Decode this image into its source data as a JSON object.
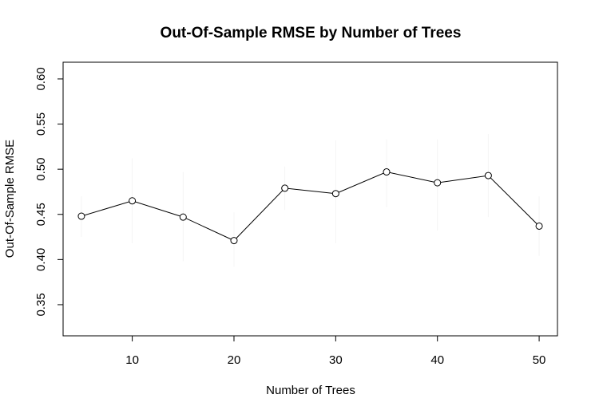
{
  "chart_data": {
    "type": "line",
    "title": "Out-Of-Sample RMSE by Number of Trees",
    "xlabel": "Number of Trees",
    "ylabel": "Out-Of-Sample RMSE",
    "x": [
      5,
      10,
      15,
      20,
      25,
      30,
      35,
      40,
      45,
      50
    ],
    "series": [
      {
        "values": [
          0.448,
          0.465,
          0.447,
          0.421,
          0.479,
          0.473,
          0.497,
          0.485,
          0.493,
          0.437
        ],
        "error_low": [
          0.425,
          0.418,
          0.398,
          0.392,
          0.455,
          0.418,
          0.458,
          0.432,
          0.447,
          0.404
        ],
        "error_high": [
          0.47,
          0.512,
          0.497,
          0.452,
          0.503,
          0.532,
          0.533,
          0.533,
          0.539,
          0.47
        ]
      }
    ],
    "xlim": [
      3.2,
      51.8
    ],
    "ylim": [
      0.3155,
      0.6185
    ],
    "xticks": [
      10,
      20,
      30,
      40,
      50
    ],
    "yticks": [
      0.35,
      0.4,
      0.45,
      0.5,
      0.55,
      0.6
    ],
    "xtick_labels": [
      "10",
      "20",
      "30",
      "40",
      "50"
    ],
    "ytick_labels": [
      "0.35",
      "0.40",
      "0.45",
      "0.50",
      "0.55",
      "0.60"
    ],
    "grid": false,
    "legend": "none",
    "colors": {
      "line": "#000000",
      "errorbar": "#f4f4f4"
    }
  }
}
